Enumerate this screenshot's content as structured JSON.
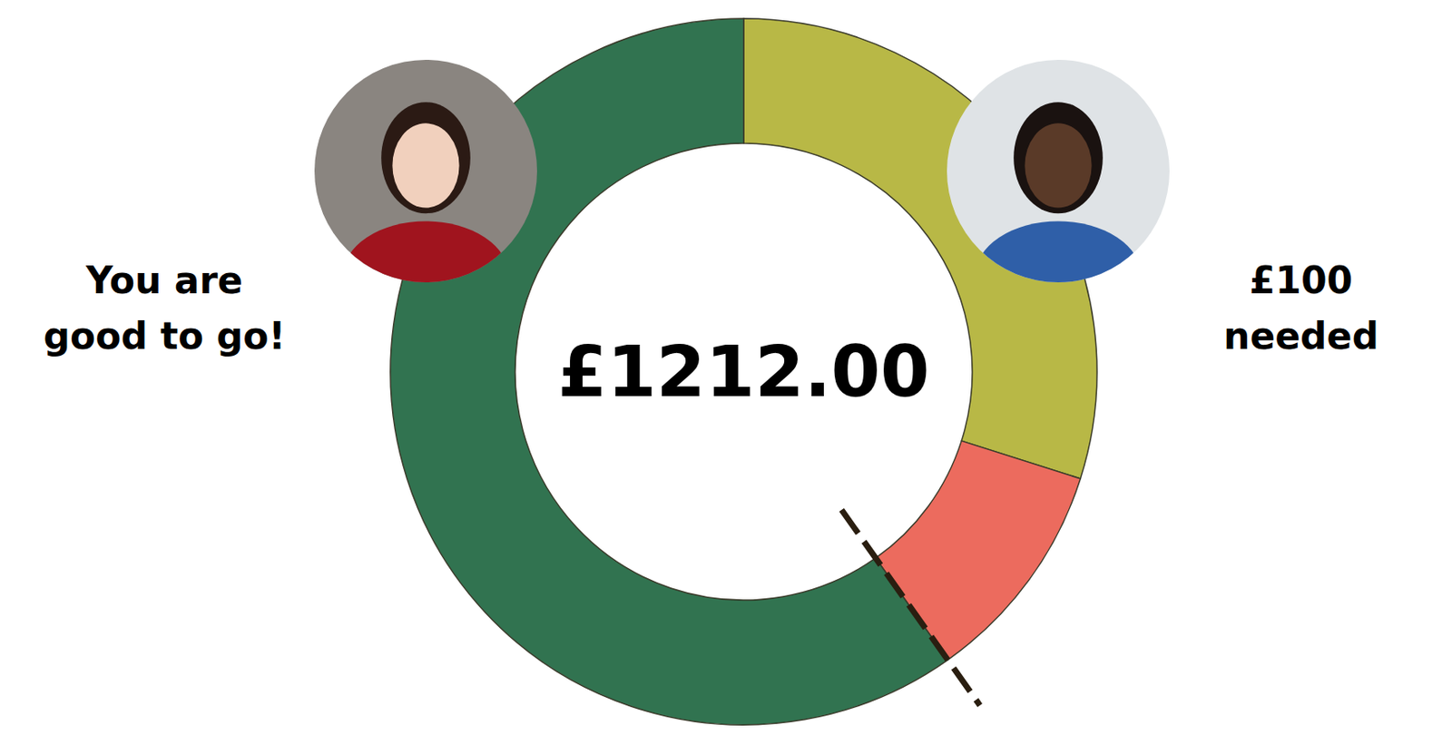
{
  "chart_data": {
    "type": "donut",
    "center_label": "£1212.00",
    "left_text": [
      "You are",
      "good to go!"
    ],
    "right_text": [
      "£100",
      "needed"
    ],
    "values": [
      29.9,
      10.3,
      59.8
    ],
    "colors": [
      "#b8b846",
      "#ec6b5e",
      "#317350"
    ]
  }
}
